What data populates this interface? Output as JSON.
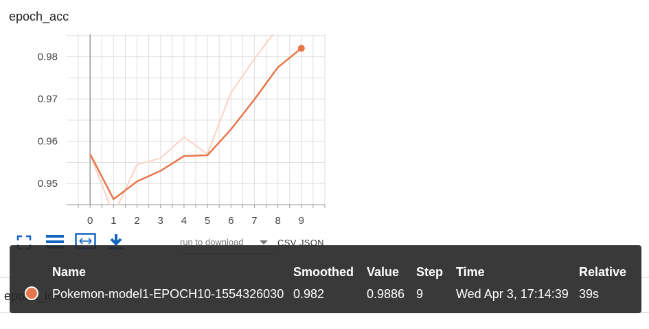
{
  "chart_title": "epoch_acc",
  "chart_data": {
    "type": "line",
    "x": [
      0,
      1,
      2,
      3,
      4,
      5,
      6,
      7,
      8,
      9
    ],
    "xlim": [
      -1,
      10
    ],
    "ylim": [
      0.945,
      0.9853
    ],
    "yticks": [
      0.95,
      0.96,
      0.97,
      0.98
    ],
    "ytick_labels": [
      "0.95",
      "0.96",
      "0.97",
      "0.98"
    ],
    "xtick_labels": [
      "0",
      "1",
      "2",
      "3",
      "4",
      "5",
      "6",
      "7",
      "8",
      "9"
    ],
    "grid": true,
    "series": [
      {
        "role": "raw",
        "color": "#fbd2c4",
        "values": [
          0.957,
          0.9426,
          0.9545,
          0.956,
          0.961,
          0.957,
          0.9715,
          0.9795,
          0.9868,
          0.9886
        ]
      },
      {
        "role": "smoothed",
        "color": "#e8764b",
        "values": [
          0.957,
          0.9463,
          0.9505,
          0.953,
          0.9565,
          0.9567,
          0.9628,
          0.9699,
          0.9775,
          0.982
        ]
      }
    ],
    "highlight_index": 9
  },
  "toolbar": {
    "icons": [
      "fullscreen-icon",
      "data-table-icon",
      "fit-domain-icon",
      "download-icon"
    ],
    "download_select_label": "run to download",
    "csv_label": "CSV",
    "json_label": "JSON"
  },
  "background_label": "epoch_loss",
  "tooltip": {
    "headers": {
      "name": "Name",
      "smoothed": "Smoothed",
      "value": "Value",
      "step": "Step",
      "time": "Time",
      "relative": "Relative"
    },
    "row": {
      "color": "#e8764b",
      "name": "Pokemon-model1-EPOCH10-1554326030",
      "smoothed": "0.982",
      "value": "0.9886",
      "step": "9",
      "time": "Wed Apr 3, 17:14:39",
      "relative": "39s"
    }
  }
}
